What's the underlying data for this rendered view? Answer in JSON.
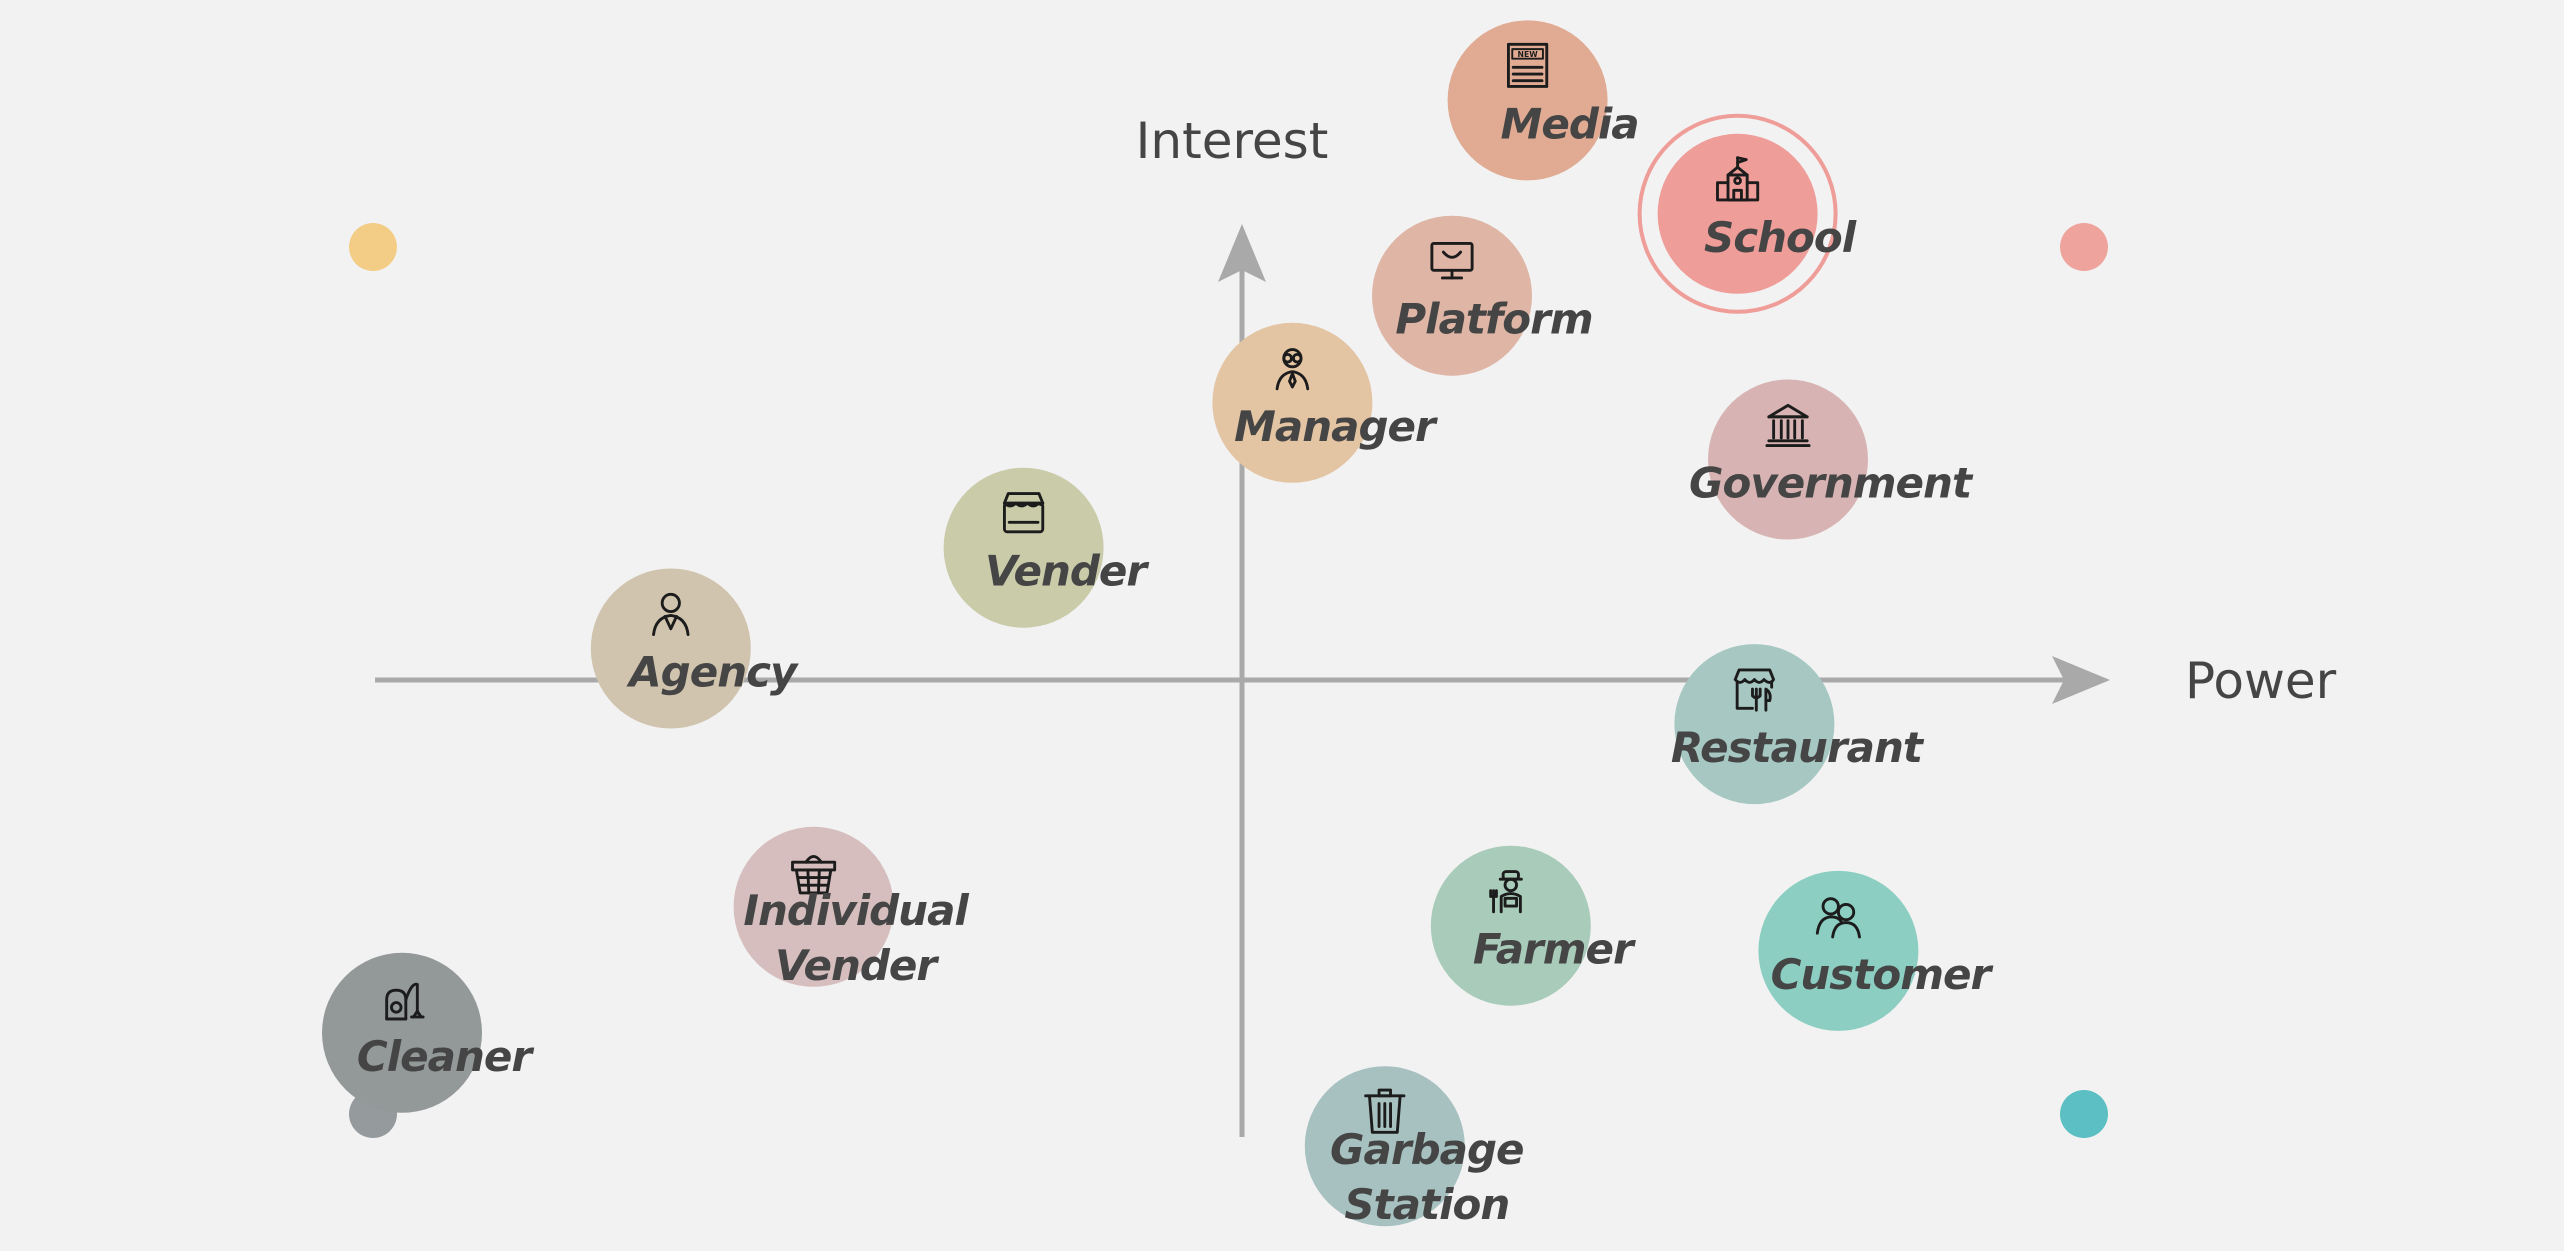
{
  "chart_data": {
    "type": "scatter",
    "title": "",
    "xlabel": "Power",
    "ylabel": "Interest",
    "grid": false,
    "legend": "none",
    "quadrant_marker_colors": {
      "top_left": "#f3cd85",
      "top_right": "#eea39c",
      "bottom_left": "#959a9c",
      "bottom_right": "#5bbfc3"
    },
    "points": [
      {
        "label": "Media",
        "icon": "newspaper-icon",
        "x": 0.34,
        "y": 0.92,
        "color": "#e0ab92",
        "highlight": false
      },
      {
        "label": "School",
        "icon": "school-icon",
        "x": 0.59,
        "y": 0.74,
        "color": "#ef9d98",
        "highlight": true
      },
      {
        "label": "Platform",
        "icon": "monitor-icon",
        "x": 0.25,
        "y": 0.61,
        "color": "#dfb5a5",
        "highlight": false
      },
      {
        "label": "Manager",
        "icon": "manager-icon",
        "x": 0.06,
        "y": 0.44,
        "color": "#e3c4a3",
        "highlight": false
      },
      {
        "label": "Government",
        "icon": "government-icon",
        "x": 0.65,
        "y": 0.35,
        "color": "#d7b4b3",
        "highlight": false
      },
      {
        "label": "Vender",
        "icon": "store-icon",
        "x": -0.26,
        "y": 0.21,
        "color": "#c9cba9",
        "highlight": false
      },
      {
        "label": "Agency",
        "icon": "agent-icon",
        "x": -0.68,
        "y": 0.05,
        "color": "#d0c4ae",
        "highlight": false
      },
      {
        "label": "Restaurant",
        "icon": "restaurant-icon",
        "x": 0.61,
        "y": -0.07,
        "color": "#a6c7c2",
        "highlight": false
      },
      {
        "label": "Individual\nVender",
        "icon": "basket-icon",
        "x": -0.51,
        "y": -0.36,
        "color": "#d6bebe",
        "highlight": false
      },
      {
        "label": "Farmer",
        "icon": "farmer-icon",
        "x": 0.32,
        "y": -0.39,
        "color": "#a9cbb9",
        "highlight": false
      },
      {
        "label": "Customer",
        "icon": "customer-icon",
        "x": 0.71,
        "y": -0.43,
        "color": "#8ccfc2",
        "highlight": false
      },
      {
        "label": "Cleaner",
        "icon": "vacuum-icon",
        "x": -1.0,
        "y": -0.56,
        "color": "#939899",
        "highlight": false
      },
      {
        "label": "Garbage\nStation",
        "icon": "trash-icon",
        "x": 0.17,
        "y": -0.74,
        "color": "#a7c1c0",
        "highlight": false
      }
    ]
  }
}
